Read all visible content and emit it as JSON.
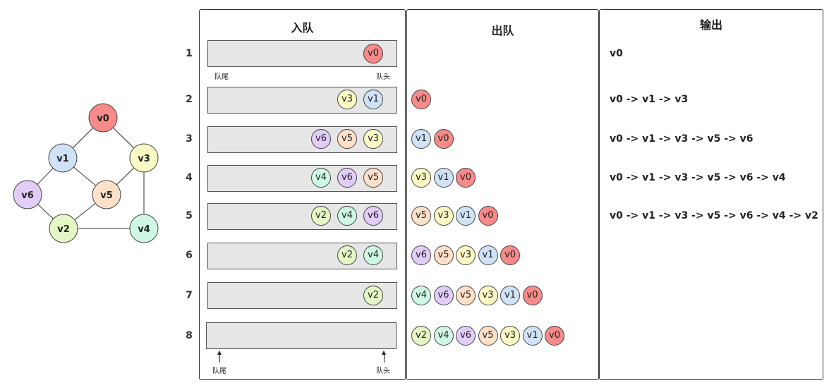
{
  "colors": {
    "v0": "#f88a8a",
    "v1": "#cfe2f6",
    "v2": "#e4f7c4",
    "v3": "#fcfac4",
    "v4": "#cff8e4",
    "v5": "#fde0c8",
    "v6": "#e2cdf8"
  },
  "graph": {
    "nodes": [
      "v0",
      "v1",
      "v3",
      "v6",
      "v5",
      "v2",
      "v4"
    ],
    "edges": [
      [
        "v0",
        "v1"
      ],
      [
        "v0",
        "v3"
      ],
      [
        "v1",
        "v6"
      ],
      [
        "v1",
        "v5"
      ],
      [
        "v3",
        "v5"
      ],
      [
        "v3",
        "v4"
      ],
      [
        "v6",
        "v2"
      ],
      [
        "v5",
        "v2"
      ],
      [
        "v2",
        "v4"
      ]
    ]
  },
  "panels": {
    "enqueue_title": "入队",
    "dequeue_title": "出队",
    "output_title": "输出"
  },
  "pointers": {
    "tail": "队尾",
    "head": "队头"
  },
  "steps": [
    {
      "num": "1",
      "queue": [
        "v0"
      ],
      "dequeued": [],
      "output": "v0"
    },
    {
      "num": "2",
      "queue": [
        "v3",
        "v1"
      ],
      "dequeued": [
        "v0"
      ],
      "output": "v0 -> v1 -> v3"
    },
    {
      "num": "3",
      "queue": [
        "v6",
        "v5",
        "v3"
      ],
      "dequeued": [
        "v1",
        "v0"
      ],
      "output": "v0 -> v1 -> v3 -> v5 -> v6"
    },
    {
      "num": "4",
      "queue": [
        "v4",
        "v6",
        "v5"
      ],
      "dequeued": [
        "v3",
        "v1",
        "v0"
      ],
      "output": "v0 -> v1 -> v3 -> v5 -> v6 -> v4"
    },
    {
      "num": "5",
      "queue": [
        "v2",
        "v4",
        "v6"
      ],
      "dequeued": [
        "v5",
        "v3",
        "v1",
        "v0"
      ],
      "output": "v0 -> v1 -> v3 -> v5 -> v6 -> v4 -> v2"
    },
    {
      "num": "6",
      "queue": [
        "v2",
        "v4"
      ],
      "dequeued": [
        "v6",
        "v5",
        "v3",
        "v1",
        "v0"
      ],
      "output": ""
    },
    {
      "num": "7",
      "queue": [
        "v2"
      ],
      "dequeued": [
        "v4",
        "v6",
        "v5",
        "v3",
        "v1",
        "v0"
      ],
      "output": ""
    },
    {
      "num": "8",
      "queue": [],
      "dequeued": [
        "v2",
        "v4",
        "v6",
        "v5",
        "v3",
        "v1",
        "v0"
      ],
      "output": ""
    }
  ]
}
